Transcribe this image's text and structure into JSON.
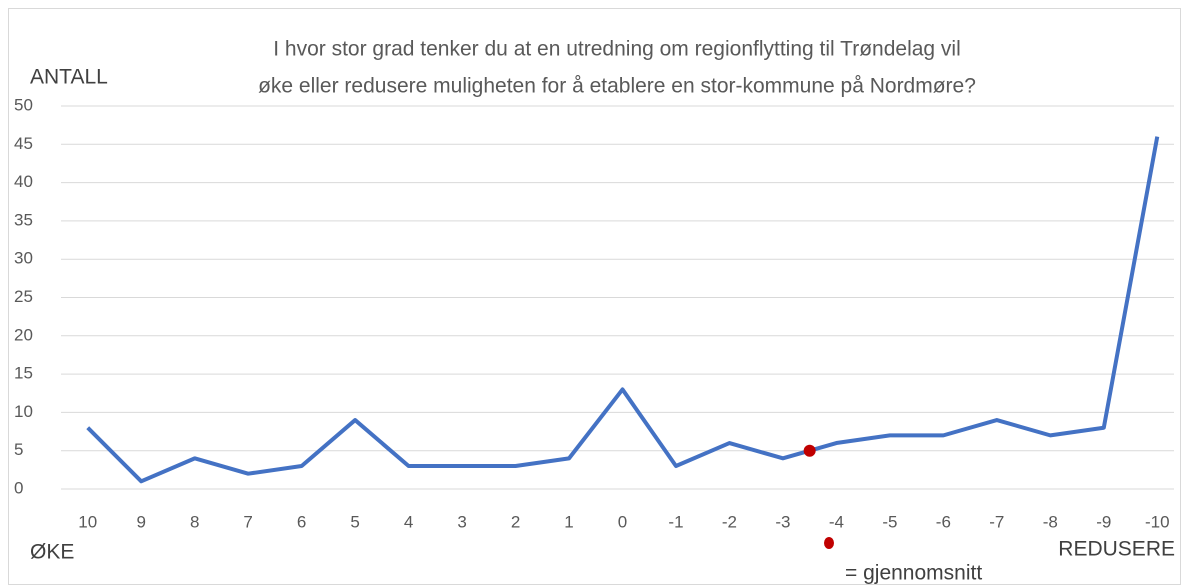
{
  "chart_data": {
    "type": "line",
    "title": [
      "I hvor stor grad tenker du at en utredning om regionflytting til Trøndelag vil",
      "øke eller redusere muligheten for å etablere en stor-kommune på Nordmøre?"
    ],
    "y_label": "ANTALL",
    "x_left_label": "ØKE",
    "x_right_label": "REDUSERE",
    "categories": [
      10,
      9,
      8,
      7,
      6,
      5,
      4,
      3,
      2,
      1,
      0,
      -1,
      -2,
      -3,
      -4,
      -5,
      -6,
      -7,
      -8,
      -9,
      -10
    ],
    "series": [
      {
        "name": "Antall",
        "color": "#4472c4",
        "values": [
          8,
          1,
          4,
          2,
          3,
          9,
          3,
          3,
          3,
          4,
          13,
          3,
          6,
          4,
          6,
          7,
          7,
          9,
          7,
          8,
          46
        ]
      }
    ],
    "ylim": [
      0,
      50
    ],
    "yticks": [
      0,
      5,
      10,
      15,
      20,
      25,
      30,
      35,
      40,
      45,
      50
    ],
    "grid": true,
    "mean_marker": {
      "x": -3.5,
      "y": 5,
      "color": "#c00000",
      "label": "= gjennomsnitt"
    }
  }
}
